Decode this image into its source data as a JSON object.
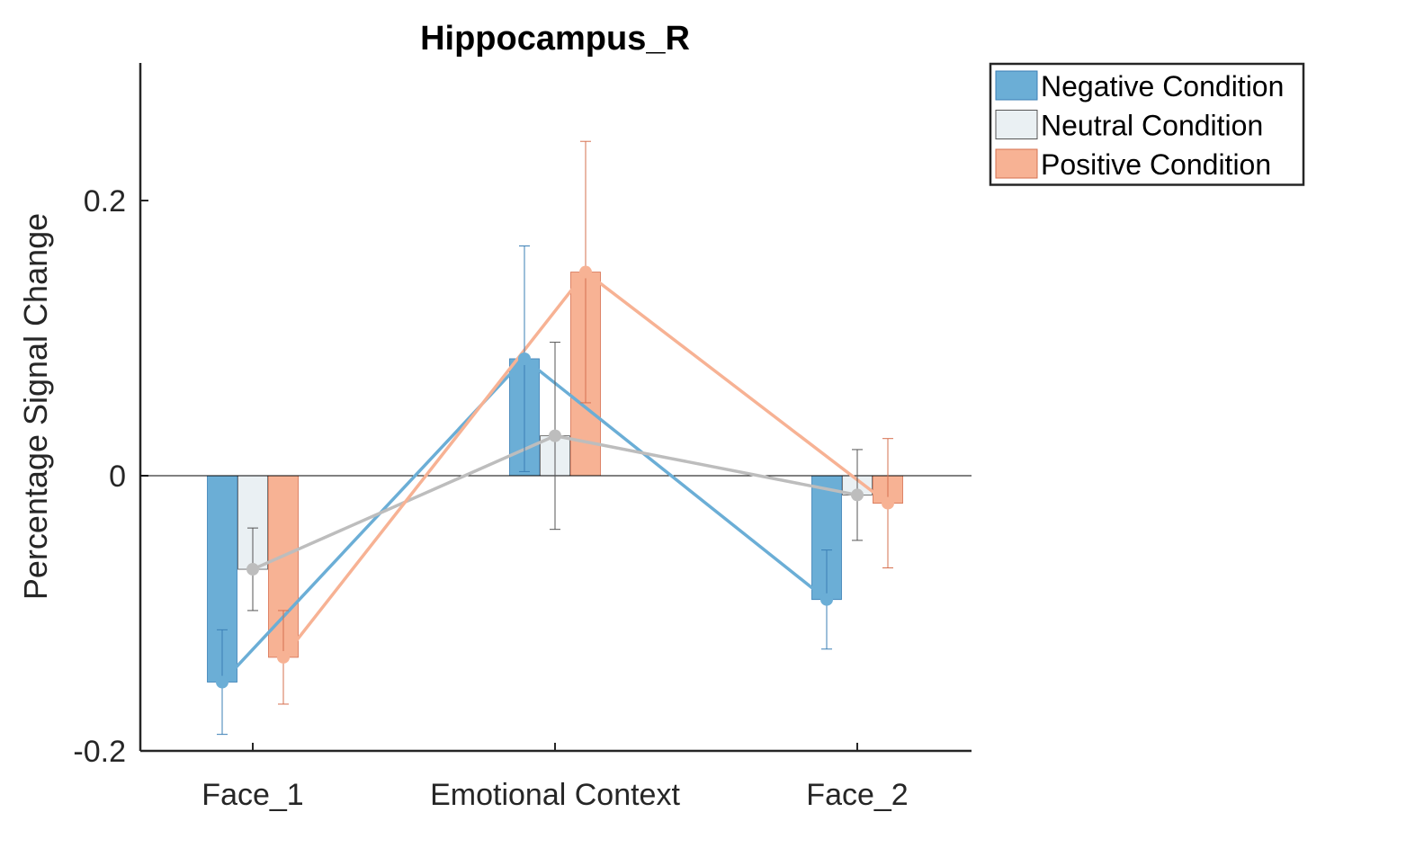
{
  "chart_data": {
    "type": "bar",
    "title": "Hippocampus_R",
    "xlabel": "",
    "ylabel": "Percentage Signal Change",
    "categories": [
      "Face_1",
      "Emotional Context",
      "Face_2"
    ],
    "ylim": [
      -0.2,
      0.3
    ],
    "yticks": [
      -0.2,
      0,
      0.2
    ],
    "ytick_labels": [
      "-0.2",
      "0",
      "0.2"
    ],
    "grid": false,
    "legend_position": "top-right outside",
    "overlay_lines": true,
    "series": [
      {
        "name": "Negative Condition",
        "color": "#6baed6",
        "edge_color": "#3b7fb5",
        "values": [
          -0.15,
          0.085,
          -0.09
        ],
        "error": [
          0.038,
          0.082,
          0.036
        ]
      },
      {
        "name": "Neutral Condition",
        "color": "#eaf0f3",
        "edge_color": "#555555",
        "line_color": "#bdbdbd",
        "values": [
          -0.068,
          0.029,
          -0.014
        ],
        "error": [
          0.03,
          0.068,
          0.033
        ]
      },
      {
        "name": "Positive Condition",
        "color": "#f7b294",
        "edge_color": "#d6704f",
        "values": [
          -0.132,
          0.148,
          -0.02
        ],
        "error": [
          0.034,
          0.095,
          0.047
        ]
      }
    ]
  }
}
